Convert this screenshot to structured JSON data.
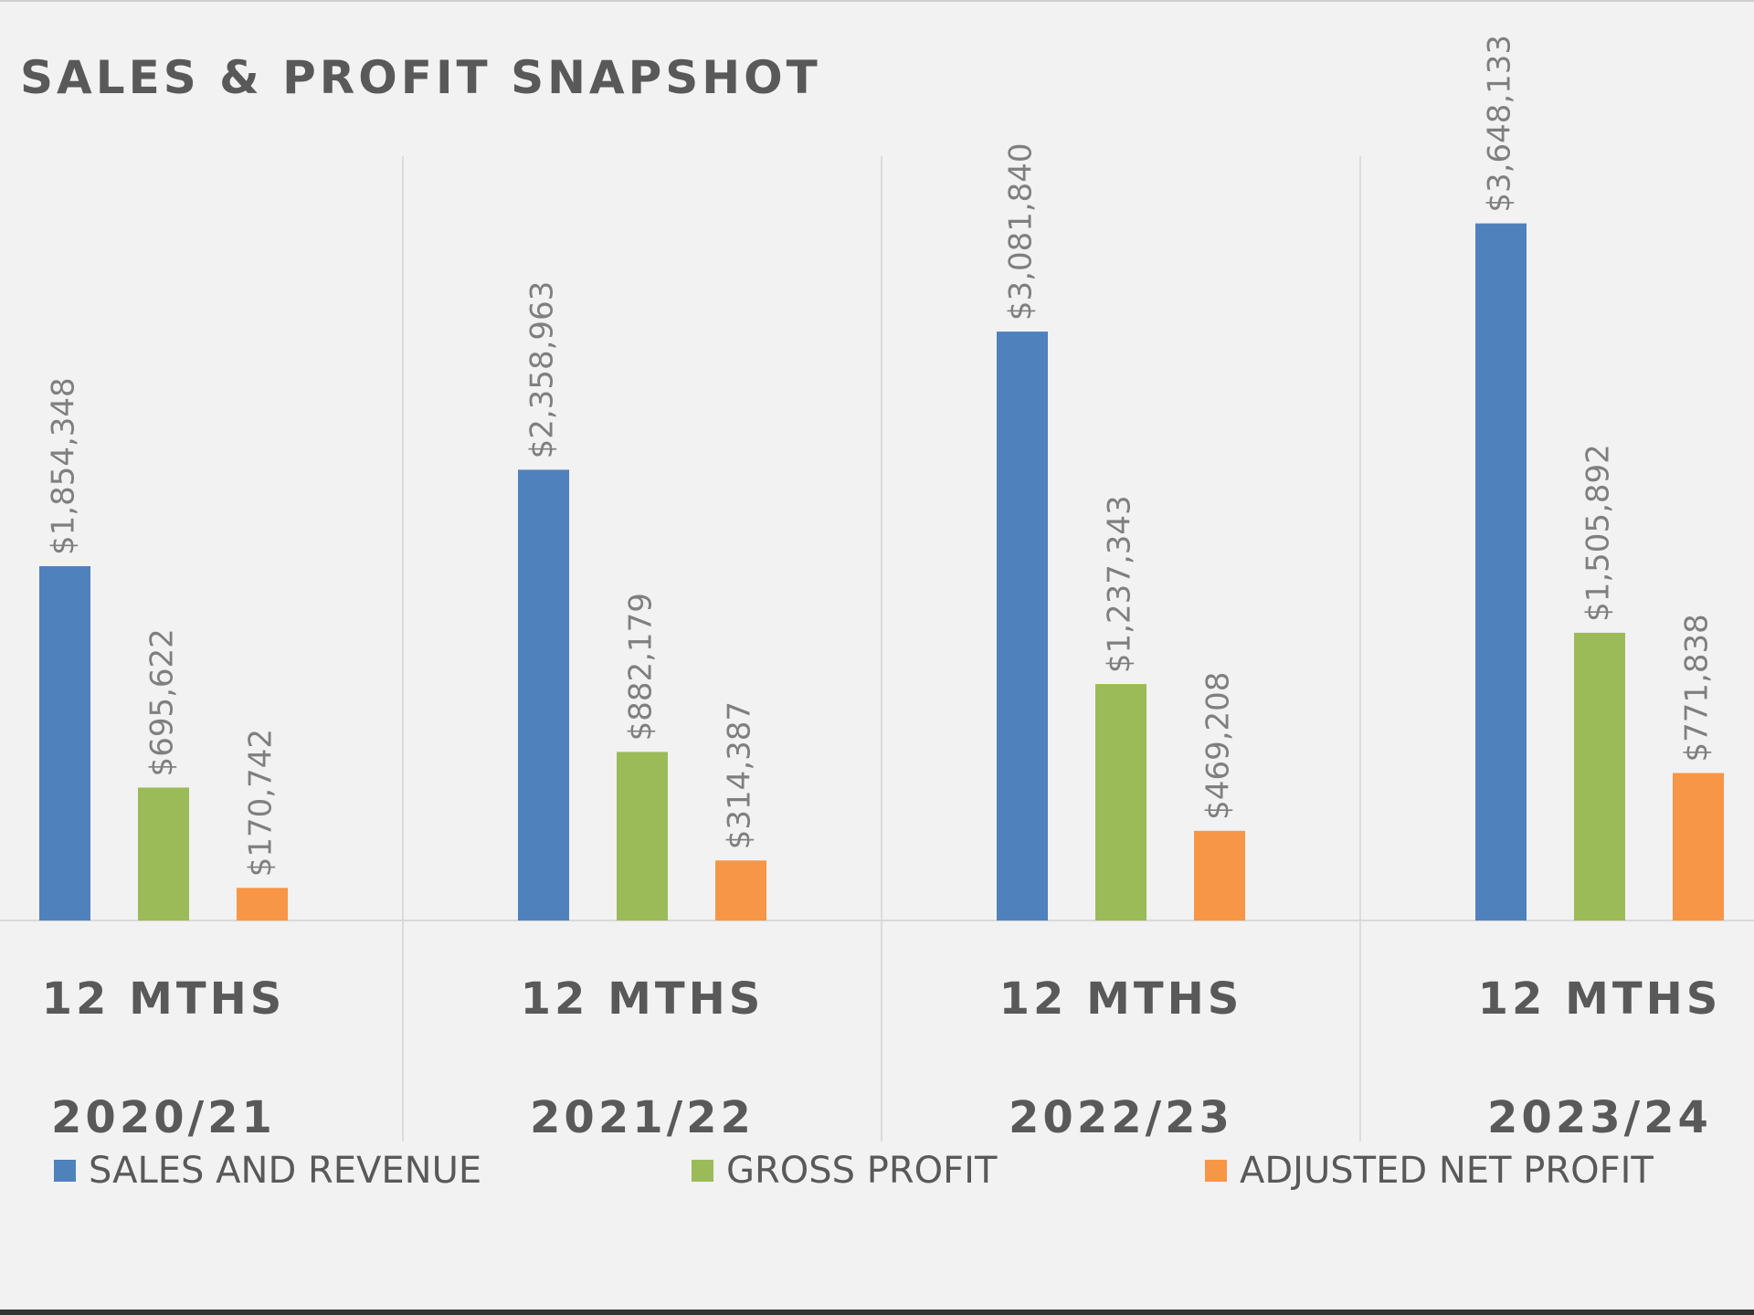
{
  "chart_data": {
    "type": "bar",
    "title": "SALES & PROFIT SNAPSHOT",
    "categories": [
      [
        "12 MTHS",
        "2020/21"
      ],
      [
        "12 MTHS",
        "2021/22"
      ],
      [
        "12 MTHS",
        "2022/23"
      ],
      [
        "12 MTHS",
        "2023/24"
      ]
    ],
    "series": [
      {
        "name": "SALES AND REVENUE",
        "color": "#4f81bd",
        "values": [
          1854348,
          2358963,
          3081840,
          3648133
        ],
        "value_labels": [
          "$1,854,348",
          "$2,358,963",
          "$3,081,840",
          "$3,648,133"
        ]
      },
      {
        "name": "GROSS PROFIT",
        "color": "#9bbb59",
        "values": [
          695622,
          882179,
          1237343,
          1505892
        ],
        "value_labels": [
          "$695,622",
          "$882,179",
          "$1,237,343",
          "$1,505,892"
        ]
      },
      {
        "name": "ADJUSTED NET PROFIT",
        "color": "#f79646",
        "values": [
          170742,
          314387,
          469208,
          771838
        ],
        "value_labels": [
          "$170,742",
          "$314,387",
          "$469,208",
          "$771,838"
        ]
      }
    ],
    "ylim": [
      0,
      4000000
    ],
    "legend": "bottom"
  }
}
